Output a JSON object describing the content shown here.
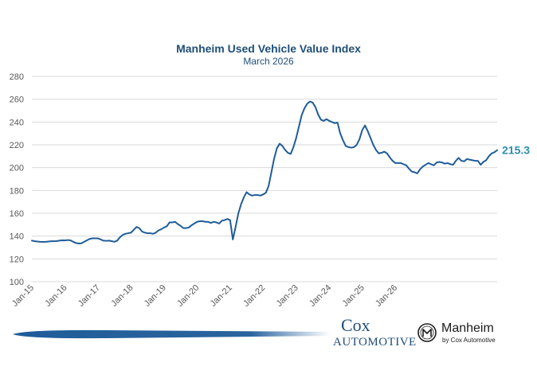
{
  "chart_data": {
    "type": "line",
    "title": "Manheim Used Vehicle Value Index",
    "subtitle": "March 2026",
    "ylim": [
      100,
      280
    ],
    "yticks": [
      100,
      120,
      140,
      160,
      180,
      200,
      220,
      240,
      260,
      280
    ],
    "xlabels": [
      "Jan-15",
      "Jan-16",
      "Jan-17",
      "Jan-18",
      "Jan-19",
      "Jan-20",
      "Jan-21",
      "Jan-22",
      "Jan-23",
      "Jan-24",
      "Jan-25",
      "Jan-26"
    ],
    "grid": true,
    "line_color": "#1f5c99",
    "end_label": "215.3",
    "end_label_color": "#2e8fb0",
    "x_start": "Jan-15",
    "x_end": "Mar-26",
    "series": [
      {
        "values": [
          136.0,
          135.5,
          135.2,
          135.0,
          134.9,
          135.0,
          135.2,
          135.5,
          135.5,
          135.6,
          136.0,
          136.3,
          136.2,
          136.5,
          136.3,
          135.0,
          133.9,
          133.5,
          133.7,
          135.0,
          136.3,
          137.5,
          138.0,
          138.0,
          138.0,
          137.0,
          136.0,
          135.8,
          136.0,
          135.5,
          135.0,
          136.0,
          139.0,
          141.0,
          142.0,
          142.5,
          143.0,
          145.5,
          148.0,
          147.0,
          144.0,
          143.0,
          142.5,
          142.5,
          142.0,
          143.0,
          145.0,
          146.0,
          147.5,
          148.5,
          152.0,
          152.0,
          152.5,
          150.5,
          149.0,
          147.0,
          147.0,
          147.5,
          149.5,
          151.0,
          152.5,
          153.0,
          153.0,
          152.5,
          152.5,
          151.5,
          152.5,
          152.0,
          151.0,
          153.5,
          154.0,
          155.0,
          154.0,
          137.0,
          148.0,
          160.0,
          168.0,
          174.0,
          178.5,
          176.5,
          175.5,
          176.0,
          176.0,
          175.5,
          176.5,
          178.0,
          184.0,
          196.0,
          208.0,
          217.0,
          221.0,
          219.0,
          215.5,
          213.0,
          212.0,
          218.0,
          226.0,
          236.0,
          246.0,
          252.0,
          256.0,
          258.0,
          257.0,
          253.0,
          246.5,
          242.0,
          241.0,
          242.5,
          241.0,
          240.0,
          239.0,
          239.5,
          230.0,
          224.0,
          219.0,
          218.0,
          217.5,
          218.0,
          220.0,
          225.0,
          233.0,
          237.0,
          232.0,
          226.0,
          220.0,
          215.5,
          212.5,
          213.0,
          214.0,
          212.5,
          209.0,
          206.0,
          204.0,
          204.0,
          204.0,
          203.0,
          202.0,
          199.0,
          196.5,
          196.0,
          195.0,
          198.5,
          201.0,
          202.5,
          204.0,
          203.0,
          202.0,
          204.5,
          205.0,
          204.5,
          203.5,
          204.0,
          203.0,
          202.5,
          206.0,
          208.5,
          206.0,
          205.5,
          207.5,
          207.0,
          206.5,
          206.0,
          206.0,
          202.5,
          205.0,
          206.5,
          210.0,
          212.5,
          213.5,
          215.3
        ]
      }
    ]
  },
  "footer": {
    "cox_top": "Cox",
    "cox_bottom": "AUTOMOTIVE",
    "manheim_name": "Manheim",
    "manheim_sub": "by Cox Automotive"
  }
}
